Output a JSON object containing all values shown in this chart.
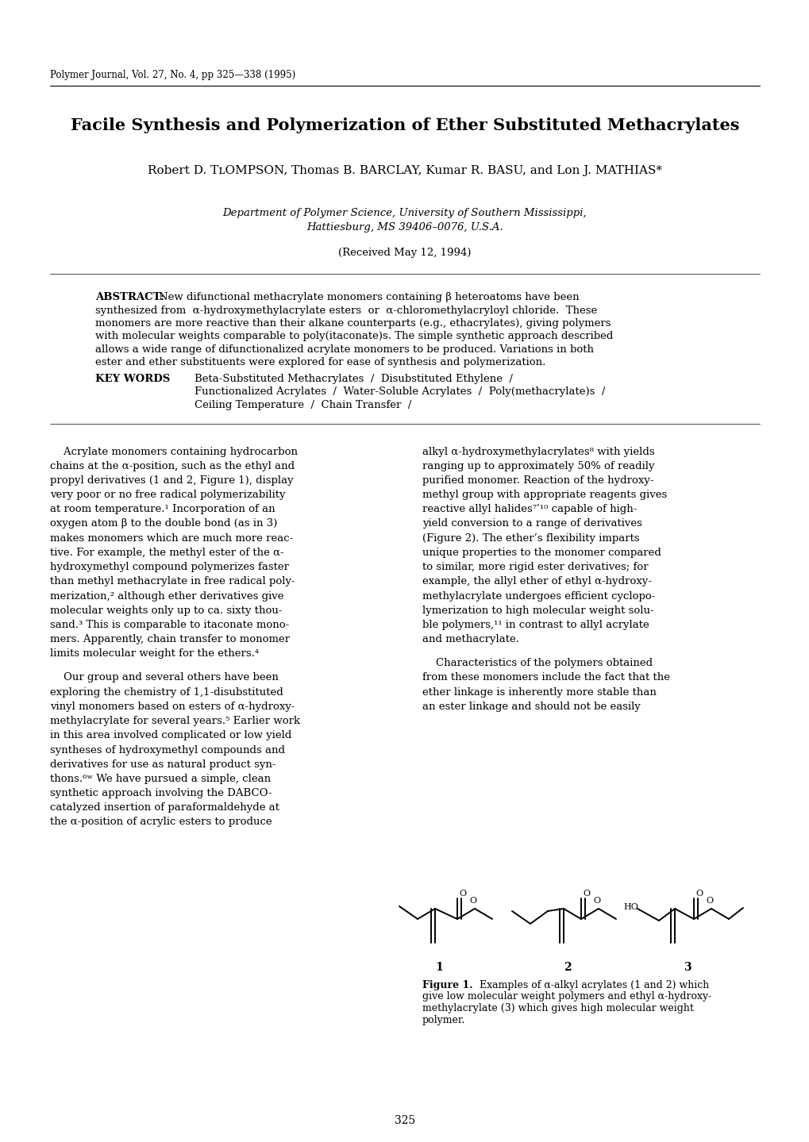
{
  "bg_color": "#ffffff",
  "journal_line": "Polymer Journal, Vol. 27, No. 4, pp 325—338 (1995)",
  "title": "Facile Synthesis and Polymerization of Ether Substituted Methacrylates",
  "authors": "Robert D. Thompson, Thomas B. Barclay, Kumar R. Basu, and Lon J. Mathias*",
  "affil1": "Department of Polymer Science, University of Southern Mississippi,",
  "affil2": "Hattiesburg, MS 39406–0076, U.S.A.",
  "received": "(Received May 12, 1994)",
  "abstract_label": "ABSTRACT:",
  "abstract_lines": [
    "New difunctional methacrylate monomers containing β heteroatoms have been",
    "synthesized from  α-hydroxymethylacrylate esters  or  α-chloromethylacryloyl chloride.  These",
    "monomers are more reactive than their alkane counterparts (e.g., ethacrylates), giving polymers",
    "with molecular weights comparable to poly(itaconate)s. The simple synthetic approach described",
    "allows a wide range of difunctionalized acrylate monomers to be produced. Variations in both",
    "ester and ether substituents were explored for ease of synthesis and polymerization."
  ],
  "kw_label": "KEY WORDS",
  "kw_text1": "Beta-Substituted Methacrylates  /  Disubstituted Ethylene  /",
  "kw_text2": "Functionalized Acrylates  /  Water-Soluble Acrylates  /  Poly(methacrylate)s  /",
  "kw_text3": "Ceiling Temperature  /  Chain Transfer  /",
  "col1p1_lines": [
    "    Acrylate monomers containing hydrocarbon",
    "chains at the α-position, such as the ethyl and",
    "propyl derivatives (1 and 2, Figure 1), display",
    "very poor or no free radical polymerizability",
    "at room temperature.¹ Incorporation of an",
    "oxygen atom β to the double bond (as in 3)",
    "makes monomers which are much more reac-",
    "tive. For example, the methyl ester of the α-",
    "hydroxymethyl compound polymerizes faster",
    "than methyl methacrylate in free radical poly-",
    "merization,² although ether derivatives give",
    "molecular weights only up to ca. sixty thou-",
    "sand.³ This is comparable to itaconate mono-",
    "mers. Apparently, chain transfer to monomer",
    "limits molecular weight for the ethers.⁴"
  ],
  "col1p2_lines": [
    "    Our group and several others have been",
    "exploring the chemistry of 1,1-disubstituted",
    "vinyl monomers based on esters of α-hydroxy-",
    "methylacrylate for several years.⁵ Earlier work",
    "in this area involved complicated or low yield",
    "syntheses of hydroxymethyl compounds and",
    "derivatives for use as natural product syn-",
    "thons.⁶ʷ We have pursued a simple, clean",
    "synthetic approach involving the DABCO-",
    "catalyzed insertion of paraformaldehyde at",
    "the α-position of acrylic esters to produce"
  ],
  "col2p1_lines": [
    "alkyl α-hydroxymethylacrylates⁸ with yields",
    "ranging up to approximately 50% of readily",
    "purified monomer. Reaction of the hydroxy-",
    "methyl group with appropriate reagents gives",
    "reactive allyl halides⁷ʹ¹⁰ capable of high-",
    "yield conversion to a range of derivatives",
    "(Figure 2). The ether’s flexibility imparts",
    "unique properties to the monomer compared",
    "to similar, more rigid ester derivatives; for",
    "example, the allyl ether of ethyl α-hydroxy-",
    "methylacrylate undergoes efficient cyclopo-",
    "lymerization to high molecular weight solu-",
    "ble polymers,¹¹ in contrast to allyl acrylate",
    "and methacrylate."
  ],
  "col2p2_lines": [
    "    Characteristics of the polymers obtained",
    "from these monomers include the fact that the",
    "ether linkage is inherently more stable than",
    "an ester linkage and should not be easily"
  ],
  "fig_cap_lines": [
    "give low molecular weight polymers and ethyl α-hydroxy-",
    "methylacrylate (3) which gives high molecular weight",
    "polymer."
  ],
  "page_num": "325"
}
